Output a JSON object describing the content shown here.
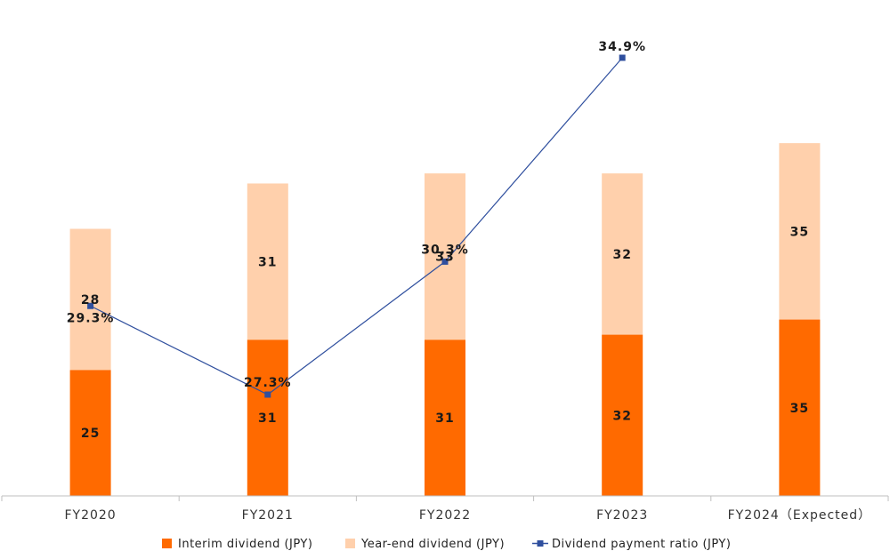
{
  "chart_data": {
    "type": "bar",
    "stacked": true,
    "categories": [
      "FY2020",
      "FY2021",
      "FY2022",
      "FY2023",
      "FY2024（Expected）"
    ],
    "series": [
      {
        "name": "Interim dividend (JPY)",
        "type": "bar",
        "color": "#ff6a00",
        "values": [
          25,
          31,
          31,
          32,
          35
        ]
      },
      {
        "name": "Year-end dividend (JPY)",
        "type": "bar",
        "color": "#ffd0ac",
        "values": [
          28,
          31,
          33,
          32,
          35
        ]
      },
      {
        "name": "Dividend payment ratio (JPY)",
        "type": "line",
        "color": "#2f4f9e",
        "values": [
          29.3,
          27.3,
          30.3,
          34.9,
          null
        ],
        "labels": [
          "29.3%",
          "27.3%",
          "30.3%",
          "34.9%",
          ""
        ]
      }
    ],
    "ylim": [
      0,
      70
    ],
    "y2lim": [
      22.5,
      35.5
    ],
    "grid": false,
    "legend": "bottom-center"
  }
}
